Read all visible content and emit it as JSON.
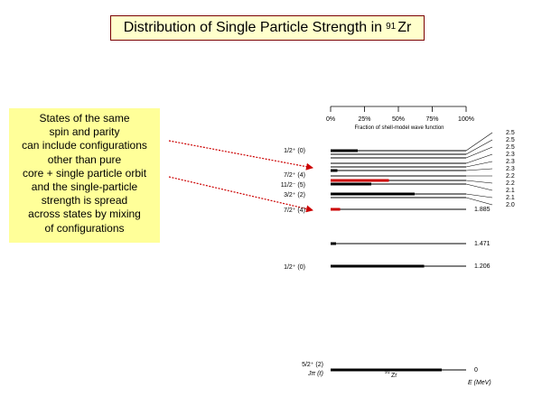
{
  "title": {
    "text": "Distribution of Single Particle Strength in",
    "superscript": "91",
    "element": "Zr"
  },
  "note": {
    "lines": [
      "States of the same",
      "spin and parity",
      "can include configurations",
      "other than pure",
      "core + single particle orbit",
      "and the single-particle",
      "strength is spread",
      "across states by mixing",
      "of configurations"
    ],
    "background": "#ffff99"
  },
  "scale": {
    "ticks": [
      "0%",
      "25%",
      "50%",
      "75%",
      "100%"
    ],
    "caption": "Fraction of shell-model wave function"
  },
  "diagram": {
    "bottom_labels": {
      "spin_header": "Jπ (ℓ)",
      "nucleus_mass": "91",
      "nucleus_symbol": "Zr",
      "energy_header": "E (MeV)"
    },
    "highlight_color": "#cc0000",
    "levels": [
      {
        "jp": "1/2⁺ (0)",
        "energy": null,
        "fraction": 0.2,
        "highlight": false
      },
      {
        "jp": "",
        "energy": null,
        "fraction": 0.0,
        "highlight": false
      },
      {
        "jp": "",
        "energy": null,
        "fraction": 0.0,
        "highlight": false
      },
      {
        "jp": "",
        "energy": null,
        "fraction": 0.0,
        "highlight": false
      },
      {
        "jp": "",
        "energy": null,
        "fraction": 0.0,
        "highlight": false
      },
      {
        "jp": "7/2⁺ (4)",
        "energy": null,
        "fraction": 0.05,
        "highlight": false
      },
      {
        "jp": "",
        "energy": null,
        "fraction": 0.0,
        "highlight": false
      },
      {
        "jp": "",
        "energy": null,
        "fraction": 0.43,
        "highlight": true
      },
      {
        "jp": "11/2⁻ (5)",
        "energy": null,
        "fraction": 0.3,
        "highlight": false
      },
      {
        "jp": "3/2⁺ (2)",
        "energy": null,
        "fraction": 0.62,
        "highlight": false
      },
      {
        "jp": "",
        "energy": null,
        "fraction": 0.0,
        "highlight": false
      },
      {
        "jp": "7/2⁺ (4)",
        "energy": "1.885",
        "fraction": 0.07,
        "highlight": true
      },
      {
        "jp": "",
        "energy": "1.471",
        "fraction": 0.04,
        "highlight": false
      },
      {
        "jp": "1/2⁺ (0)",
        "energy": "1.206",
        "fraction": 0.69,
        "highlight": false
      },
      {
        "jp": "5/2⁺ (2)",
        "energy": "0",
        "fraction": 0.82,
        "highlight": false
      }
    ],
    "right_energies": [
      "2.5",
      "2.5",
      "2.5",
      "2.3",
      "2.3",
      "2.3",
      "2.2",
      "2.2",
      "2.1",
      "2.1",
      "2.0"
    ]
  }
}
